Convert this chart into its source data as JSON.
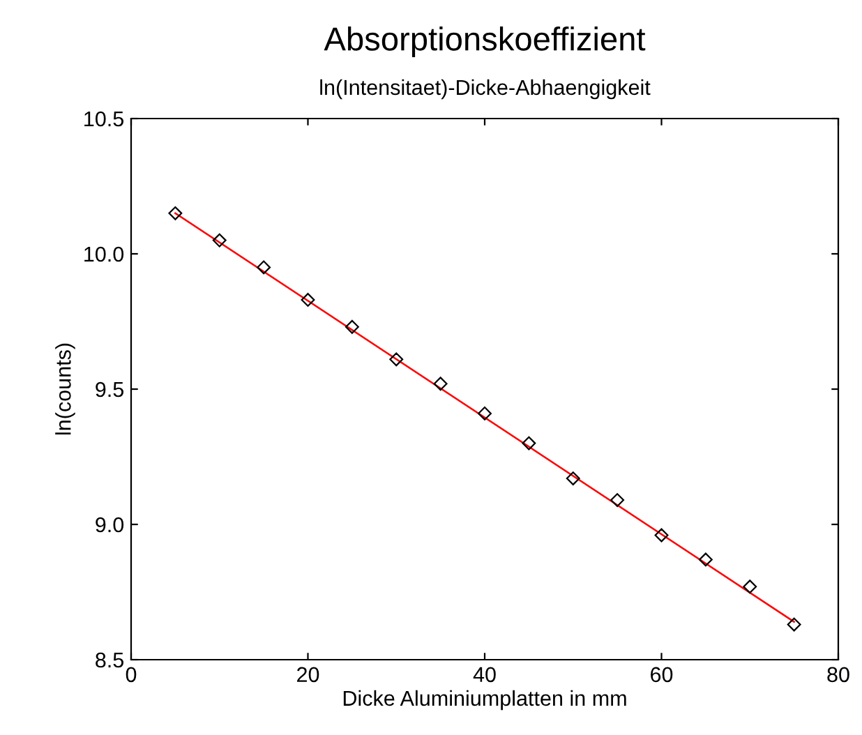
{
  "chart_data": {
    "type": "scatter",
    "title": "Absorptionskoeffizient",
    "subtitle": "ln(Intensitaet)-Dicke-Abhaengigkeit",
    "xlabel": "Dicke Aluminiumplatten in mm",
    "ylabel": "ln(counts)",
    "series": [
      {
        "color": "#000000",
        "marker": "diamond",
        "x": [
          5,
          10,
          15,
          20,
          25,
          30,
          35,
          40,
          45,
          50,
          55,
          60,
          65,
          70,
          75
        ],
        "values": [
          10.15,
          10.05,
          9.95,
          9.83,
          9.73,
          9.61,
          9.52,
          9.41,
          9.3,
          9.17,
          9.09,
          8.96,
          8.87,
          8.77,
          8.63
        ]
      },
      {
        "type": "line",
        "color": "#ff0000",
        "marker": "none",
        "x": [
          5,
          75
        ],
        "values": [
          10.15,
          8.64
        ]
      }
    ],
    "xlim": [
      0,
      80
    ],
    "xticks": [
      0,
      20,
      40,
      60,
      80
    ],
    "ylim": [
      8.5,
      10.5
    ],
    "yticks": [
      {
        "value": 8.5,
        "label": "8.5"
      },
      {
        "value": 9.0,
        "label": "9.0"
      },
      {
        "value": 9.5,
        "label": "9.5"
      },
      {
        "value": 10.0,
        "label": "10.0"
      },
      {
        "value": 10.5,
        "label": "10.5"
      }
    ],
    "grid": false,
    "legend": false
  }
}
